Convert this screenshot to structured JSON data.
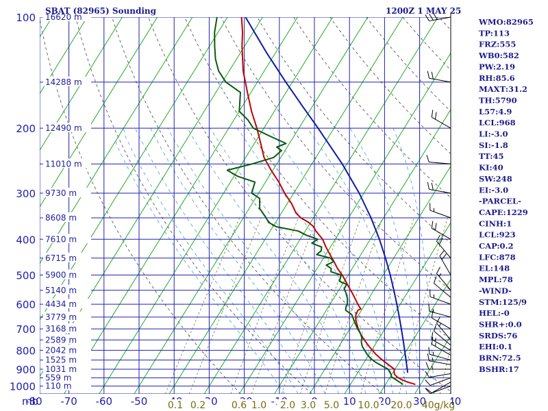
{
  "header": {
    "station": "SBAT (82965) Sounding",
    "time": "1200Z  1 MAY 25"
  },
  "indices": [
    "WMO:82965",
    "TP:113",
    "FRZ:555",
    "WB0:582",
    "PW:2.19",
    "RH:85.6",
    "MAXT:31.2",
    "TH:5790",
    "L57:4.9",
    "LCL:968",
    "LI:-3.0",
    "SI:-1.8",
    "TT:45",
    "KI:40",
    "SW:248",
    "EI:-3.0",
    "-PARCEL-",
    "CAPE:1229",
    "CINH:1",
    "LCL:923",
    "CAP:0.2",
    "LFC:878",
    "EL:148",
    "MPL:78",
    "-WIND-",
    "STM:125/9",
    "HEL:-0",
    "SHR+:0.0",
    "SRDS:76",
    "EHI:0.1",
    "BRN:72.5",
    "BSHR:17"
  ],
  "chart_data": {
    "type": "line",
    "title": "",
    "xlabel": "",
    "ylabel": "mb",
    "y_scale": "log",
    "x_skew": true,
    "xlim": [
      -80,
      0
    ],
    "ylim": [
      1000,
      100
    ],
    "pressure_ticks": [
      {
        "p": 100,
        "label": "100",
        "height": "16620 m"
      },
      {
        "p": 150,
        "label": "",
        "height": "14288 m"
      },
      {
        "p": 200,
        "label": "200",
        "height": "12490 m"
      },
      {
        "p": 250,
        "label": "",
        "height": "11010 m"
      },
      {
        "p": 300,
        "label": "300",
        "height": "9730 m"
      },
      {
        "p": 350,
        "label": "",
        "height": "8608 m"
      },
      {
        "p": 400,
        "label": "400",
        "height": "7610 m"
      },
      {
        "p": 450,
        "label": "",
        "height": "6715 m"
      },
      {
        "p": 500,
        "label": "500",
        "height": "5900 m"
      },
      {
        "p": 550,
        "label": "",
        "height": "5140 m"
      },
      {
        "p": 600,
        "label": "600",
        "height": "4434 m"
      },
      {
        "p": 650,
        "label": "",
        "height": "3779 m"
      },
      {
        "p": 700,
        "label": "700",
        "height": "3168 m"
      },
      {
        "p": 750,
        "label": "",
        "height": "2589 m"
      },
      {
        "p": 800,
        "label": "800",
        "height": "2042 m"
      },
      {
        "p": 850,
        "label": "",
        "height": "1525 m"
      },
      {
        "p": 900,
        "label": "900",
        "height": "1031 m"
      },
      {
        "p": 950,
        "label": "",
        "height": "559 m"
      },
      {
        "p": 1000,
        "label": "1000",
        "height": "110 m"
      }
    ],
    "temperature_ticks": [
      "-80",
      "-70",
      "-60",
      "-50",
      "-40",
      "-30",
      "-20",
      "-10",
      "0",
      "10",
      "20",
      "30",
      "40"
    ],
    "mixing_ratio_labels": [
      "0.1",
      "0.2",
      "0.6",
      "1.0",
      "2.0",
      "3.0",
      "5.0",
      "10.0",
      "20.0",
      "40g/kg"
    ],
    "mb_label": "mb",
    "series": [
      {
        "color": "#c00000",
        "p": [
          990,
          975,
          960,
          945,
          930,
          915,
          900,
          880,
          860,
          840,
          820,
          800,
          780,
          760,
          740,
          720,
          700,
          680,
          660,
          640,
          623,
          618,
          600,
          580,
          560,
          540,
          520,
          500,
          480,
          460,
          440,
          420,
          400,
          380,
          370,
          360,
          350,
          340,
          320,
          300,
          280,
          260,
          240,
          220,
          200,
          180,
          160,
          140,
          120,
          110,
          100
        ],
        "t": [
          28.5,
          25.8,
          23.6,
          22.0,
          20.8,
          20.2,
          19.8,
          17.8,
          15.8,
          13.8,
          11.9,
          10.2,
          8.5,
          6.9,
          5.3,
          3.8,
          2.4,
          1.2,
          0.0,
          -0.8,
          -1.0,
          -0.4,
          -2.1,
          -3.8,
          -5.6,
          -7.6,
          -9.6,
          -11.7,
          -14.2,
          -16.4,
          -18.8,
          -21.3,
          -23.6,
          -27.0,
          -28.4,
          -30.6,
          -33.6,
          -35.8,
          -38.8,
          -42.6,
          -46.2,
          -50.5,
          -54.8,
          -58.2,
          -62.0,
          -66.5,
          -71.0,
          -76.0,
          -80.7,
          -83.0,
          -86.0
        ]
      },
      {
        "color": "#0a5a0a",
        "p": [
          990,
          975,
          960,
          945,
          930,
          915,
          900,
          880,
          860,
          840,
          820,
          800,
          780,
          760,
          740,
          720,
          700,
          680,
          660,
          640,
          623,
          610,
          600,
          580,
          560,
          545,
          530,
          520,
          500,
          490,
          480,
          470,
          460,
          450,
          440,
          430,
          420,
          410,
          400,
          390,
          380,
          370,
          360,
          350,
          330,
          310,
          300,
          280,
          270,
          260,
          250,
          240,
          230,
          225,
          220,
          210,
          200,
          190,
          180,
          160,
          150,
          140,
          130,
          120,
          110,
          100
        ],
        "t": [
          25.0,
          23.5,
          22.0,
          20.4,
          19.8,
          19.0,
          18.0,
          15.5,
          13.0,
          11.0,
          9.4,
          8.0,
          6.6,
          5.6,
          5.0,
          3.8,
          2.2,
          0.8,
          -0.6,
          -2.0,
          -4.5,
          -5.0,
          -5.1,
          -6.0,
          -7.4,
          -8.7,
          -8.8,
          -11.4,
          -12.0,
          -15.5,
          -16.0,
          -18.0,
          -16.5,
          -18.0,
          -22.6,
          -22.0,
          -22.5,
          -26.0,
          -25.0,
          -29.0,
          -32.0,
          -39.0,
          -42.0,
          -43.5,
          -47.0,
          -48.8,
          -52.0,
          -53.0,
          -59.0,
          -63.0,
          -57.0,
          -52.0,
          -51.0,
          -53.0,
          -51.0,
          -57.0,
          -63.0,
          -66.0,
          -70.0,
          -73.0,
          -79.0,
          -83.0,
          -86.0,
          -88.5,
          -91.0,
          -93.0
        ]
      },
      {
        "color": "#0d18a8",
        "p": [
          920,
          900,
          850,
          800,
          750,
          700,
          650,
          600,
          550,
          500,
          450,
          400,
          350,
          300,
          250,
          200,
          175,
          150,
          125,
          100
        ],
        "theta_e": 363.5
      }
    ],
    "wind_barbs": [
      {
        "p": 1000,
        "dir": 250,
        "spd": 8
      },
      {
        "p": 975,
        "dir": 240,
        "spd": 9
      },
      {
        "p": 950,
        "dir": 250,
        "spd": 10
      },
      {
        "p": 925,
        "dir": 260,
        "spd": 11
      },
      {
        "p": 900,
        "dir": 270,
        "spd": 13
      },
      {
        "p": 875,
        "dir": 280,
        "spd": 15
      },
      {
        "p": 850,
        "dir": 285,
        "spd": 17
      },
      {
        "p": 825,
        "dir": 300,
        "spd": 15
      },
      {
        "p": 800,
        "dir": 300,
        "spd": 14
      },
      {
        "p": 775,
        "dir": 310,
        "spd": 12
      },
      {
        "p": 750,
        "dir": 320,
        "spd": 13
      },
      {
        "p": 700,
        "dir": 300,
        "spd": 10
      },
      {
        "p": 650,
        "dir": 285,
        "spd": 14
      },
      {
        "p": 600,
        "dir": 290,
        "spd": 13
      },
      {
        "p": 575,
        "dir": 310,
        "spd": 12
      },
      {
        "p": 550,
        "dir": 320,
        "spd": 14
      },
      {
        "p": 500,
        "dir": 330,
        "spd": 18
      },
      {
        "p": 450,
        "dir": 320,
        "spd": 18
      },
      {
        "p": 400,
        "dir": 300,
        "spd": 20
      },
      {
        "p": 350,
        "dir": 290,
        "spd": 17
      },
      {
        "p": 300,
        "dir": 280,
        "spd": 22
      },
      {
        "p": 250,
        "dir": 275,
        "spd": 12
      },
      {
        "p": 200,
        "dir": 300,
        "spd": 20
      },
      {
        "p": 150,
        "dir": 280,
        "spd": 18
      },
      {
        "p": 100,
        "dir": 260,
        "spd": 30
      }
    ]
  }
}
